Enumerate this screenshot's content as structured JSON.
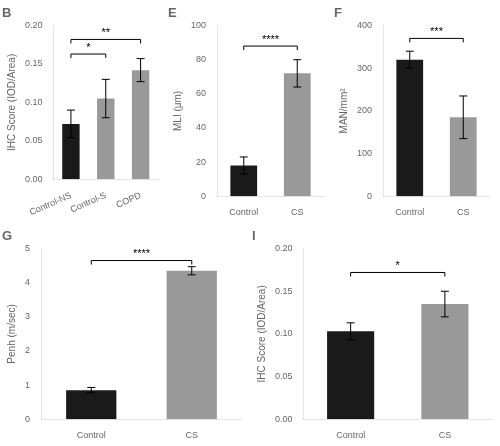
{
  "chart_data": [
    {
      "type": "bar",
      "title": "B",
      "categories": [
        "Control-NS",
        "Control-S",
        "COPD"
      ],
      "values": [
        0.072,
        0.105,
        0.142
      ],
      "errors": [
        0.018,
        0.025,
        0.015
      ],
      "colors": [
        "#1a1a1a",
        "#999999",
        "#999999"
      ],
      "ylabel": "IHC Score (IOD/Area)",
      "ylim": [
        0,
        0.2
      ],
      "yticks": [
        {
          "value": 0.0,
          "label": "0.00"
        },
        {
          "value": 0.05,
          "label": "0.05"
        },
        {
          "value": 0.1,
          "label": "0.10"
        },
        {
          "value": 0.15,
          "label": "0.15"
        },
        {
          "value": 0.2,
          "label": "0.20"
        }
      ],
      "annotations": [
        {
          "x1": "Control-NS",
          "x2": "Control-S",
          "y": 0.163,
          "label": "*"
        },
        {
          "x1": "Control-NS",
          "x2": "COPD",
          "y": 0.182,
          "label": "**"
        }
      ],
      "grid": false
    },
    {
      "type": "bar",
      "title": "E",
      "categories": [
        "Control",
        "CS"
      ],
      "values": [
        18,
        72
      ],
      "errors": [
        5,
        8
      ],
      "colors": [
        "#1a1a1a",
        "#999999"
      ],
      "ylabel": "MLI (μm)",
      "ylim": [
        0,
        100
      ],
      "yticks": [
        0,
        20,
        40,
        60,
        80,
        100
      ],
      "annotations": [
        {
          "x1": "Control",
          "x2": "CS",
          "y": 88,
          "label": "****"
        }
      ],
      "grid": false
    },
    {
      "type": "bar",
      "title": "F",
      "categories": [
        "Control",
        "CS"
      ],
      "values": [
        320,
        185
      ],
      "errors": [
        20,
        50
      ],
      "colors": [
        "#1a1a1a",
        "#999999"
      ],
      "ylabel": "MAN/mm²",
      "ylim": [
        0,
        400
      ],
      "yticks": [
        0,
        100,
        200,
        300,
        400
      ],
      "annotations": [
        {
          "x1": "Control",
          "x2": "CS",
          "y": 370,
          "label": "***"
        }
      ],
      "grid": false
    },
    {
      "type": "bar",
      "title": "G",
      "categories": [
        "Control",
        "CS"
      ],
      "values": [
        0.85,
        4.35
      ],
      "errors": [
        0.08,
        0.12
      ],
      "colors": [
        "#1a1a1a",
        "#999999"
      ],
      "ylabel": "Penh (m/sec)",
      "ylim": [
        0,
        5
      ],
      "yticks": [
        0,
        1,
        2,
        3,
        4,
        5
      ],
      "annotations": [
        {
          "x1": "Control",
          "x2": "CS",
          "y": 4.65,
          "label": "****"
        }
      ],
      "grid": false
    },
    {
      "type": "bar",
      "title": "I",
      "categories": [
        "Control",
        "CS"
      ],
      "values": [
        0.103,
        0.135
      ],
      "errors": [
        0.01,
        0.015
      ],
      "colors": [
        "#1a1a1a",
        "#999999"
      ],
      "ylabel": "IHC Score (IOD/Area)",
      "ylim": [
        0,
        0.2
      ],
      "yticks": [
        {
          "value": 0.0,
          "label": "0.00"
        },
        {
          "value": 0.05,
          "label": "0.05"
        },
        {
          "value": 0.1,
          "label": "0.10"
        },
        {
          "value": 0.15,
          "label": "0.15"
        },
        {
          "value": 0.2,
          "label": "0.20"
        }
      ],
      "annotations": [
        {
          "x1": "Control",
          "x2": "CS",
          "y": 0.172,
          "label": "*"
        }
      ],
      "grid": false
    }
  ]
}
